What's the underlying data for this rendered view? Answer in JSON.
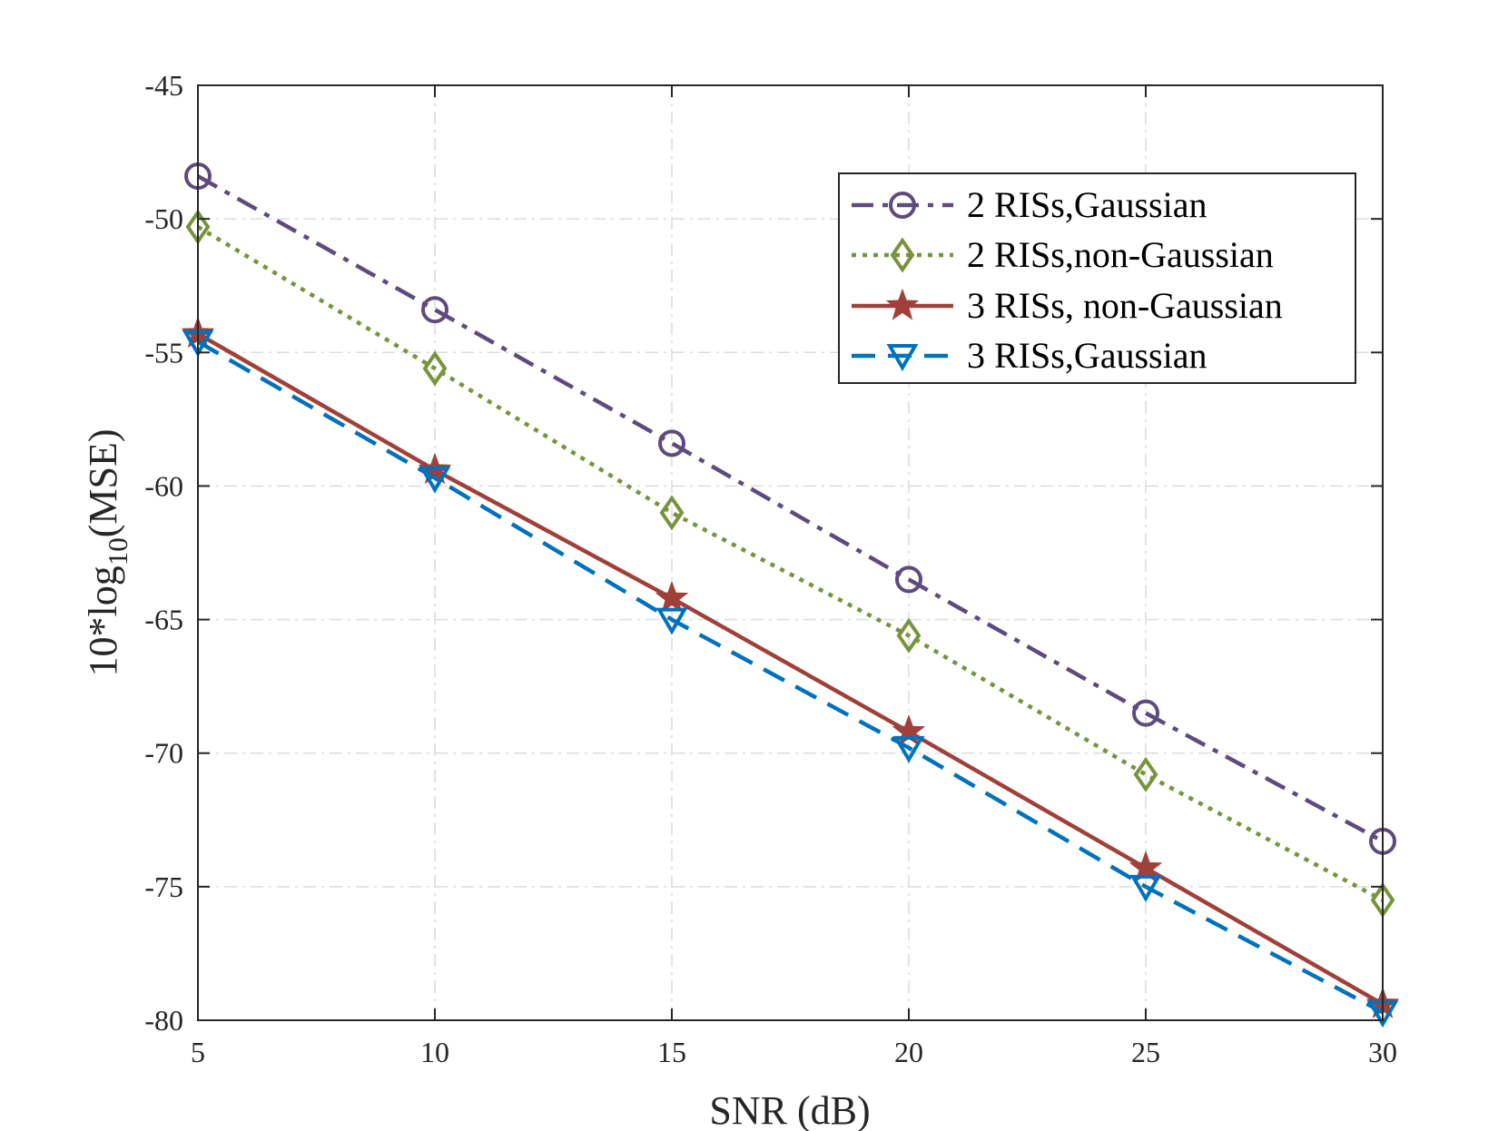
{
  "chart_data": {
    "type": "line",
    "title": "",
    "xlabel": "SNR (dB)",
    "ylabel": {
      "prefix": "10*log",
      "subscript": "10",
      "suffix": "(MSE)"
    },
    "x": [
      5,
      10,
      15,
      20,
      25,
      30
    ],
    "xlim": [
      5,
      30
    ],
    "ylim": [
      -80,
      -45
    ],
    "xticks": [
      5,
      10,
      15,
      20,
      25,
      30
    ],
    "yticks": [
      -45,
      -50,
      -55,
      -60,
      -65,
      -70,
      -75,
      -80
    ],
    "grid": true,
    "legend_position": "top-right",
    "series": [
      {
        "name": "2 RISs,Gaussian",
        "color": "#5e4b7e",
        "line": "dashdot",
        "marker": "circle",
        "values": [
          -48.4,
          -53.4,
          -58.4,
          -63.5,
          -68.5,
          -73.3
        ]
      },
      {
        "name": "2 RISs,non-Gaussian",
        "color": "#77933c",
        "line": "dotted",
        "marker": "diamond",
        "values": [
          -50.3,
          -55.6,
          -61.0,
          -65.6,
          -70.8,
          -75.5
        ]
      },
      {
        "name": "3 RISs, non-Gaussian",
        "color": "#a0403a",
        "line": "solid",
        "marker": "star",
        "values": [
          -54.3,
          -59.4,
          -64.2,
          -69.2,
          -74.3,
          -79.4
        ]
      },
      {
        "name": "3 RISs,Gaussian",
        "color": "#0072bd",
        "line": "dashed",
        "marker": "triangle-down",
        "values": [
          -54.6,
          -59.7,
          -65.0,
          -69.8,
          -75.0,
          -79.7
        ]
      }
    ]
  }
}
